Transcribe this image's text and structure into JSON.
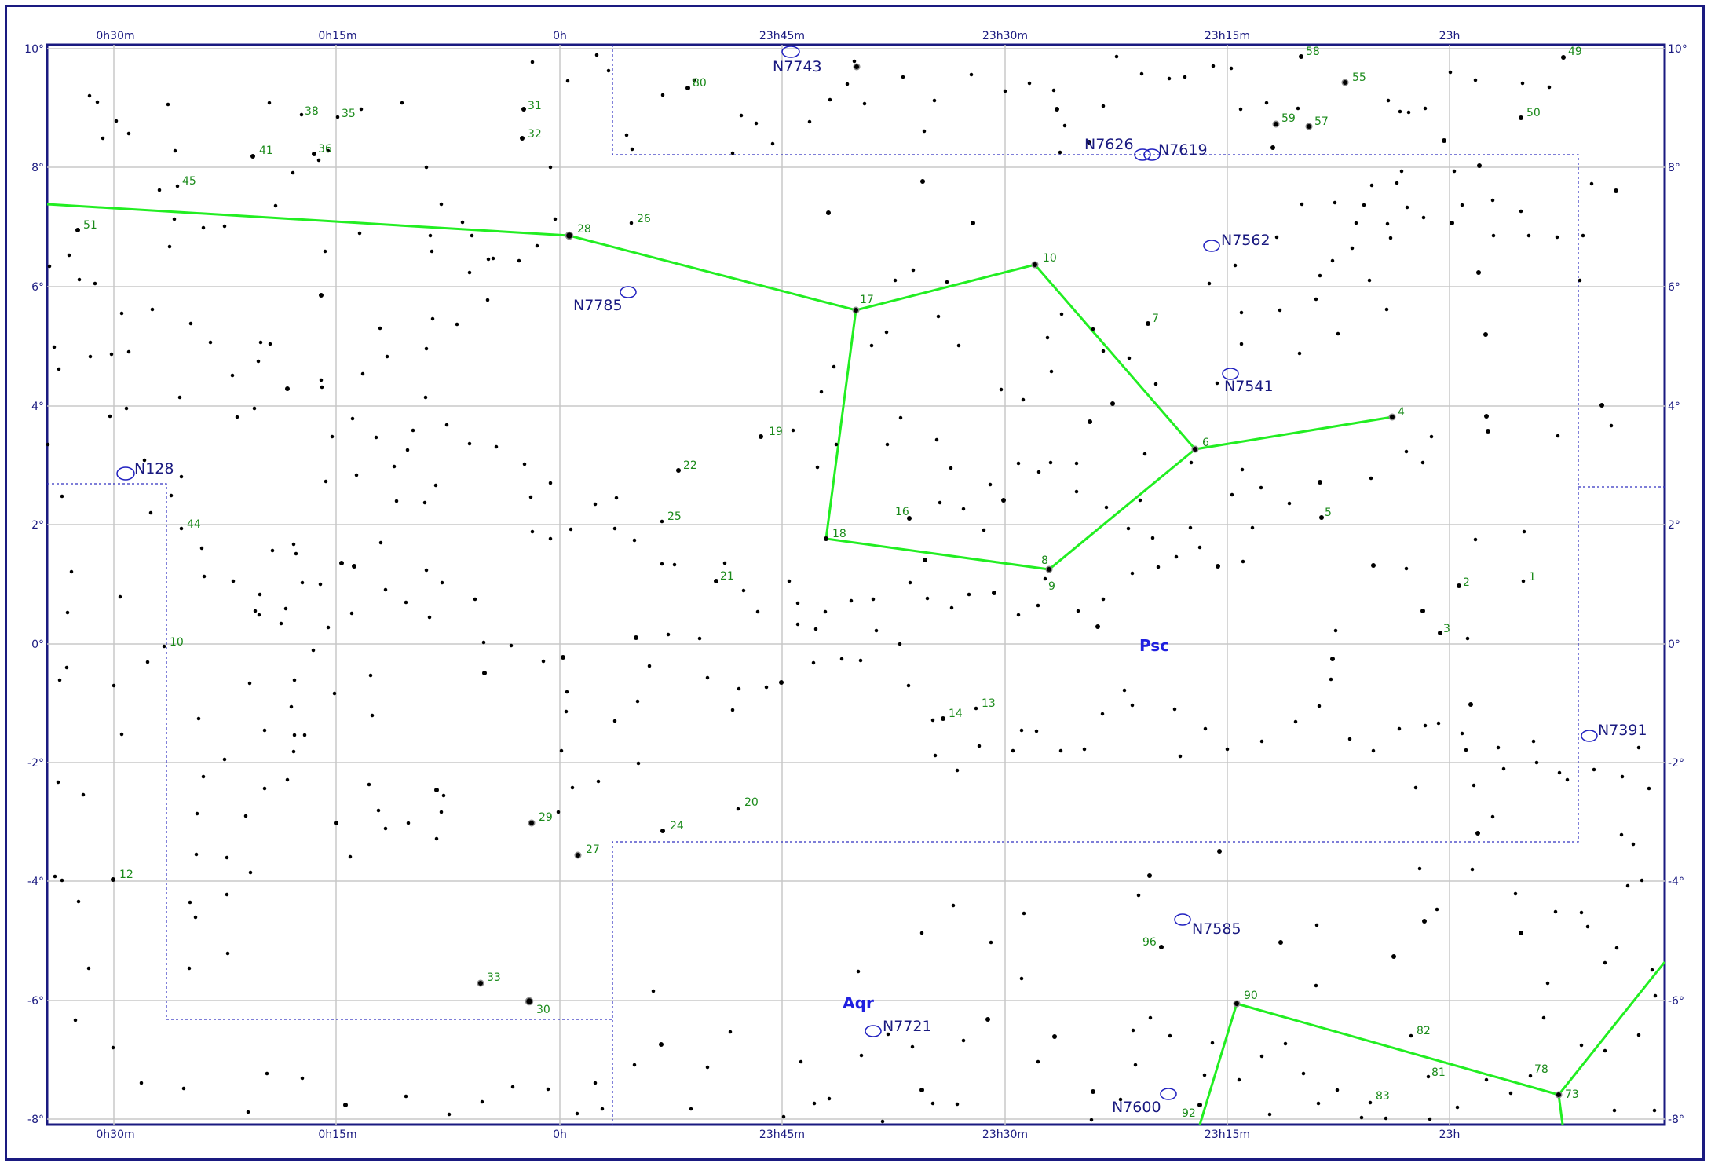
{
  "ra_labels": [
    "0h30m",
    "0h15m",
    "0h",
    "23h45m",
    "23h30m",
    "23h15m",
    "23h"
  ],
  "dec_labels": [
    "10°",
    "8°",
    "6°",
    "4°",
    "2°",
    "0°",
    "-2°",
    "-4°",
    "-6°",
    "-8°"
  ],
  "constellations": [
    "Psc",
    "Aqr"
  ],
  "deep_sky": [
    "N7743",
    "N7626",
    "N7619",
    "N7562",
    "N7785",
    "N7541",
    "N128",
    "N7391",
    "N7585",
    "N7721",
    "N7600"
  ],
  "star_numbers": [
    "58",
    "55",
    "49",
    "80",
    "59",
    "57",
    "50",
    "31",
    "32",
    "38",
    "35",
    "41",
    "36",
    "45",
    "51",
    "28",
    "26",
    "10",
    "17",
    "7",
    "4",
    "6",
    "19",
    "22",
    "25",
    "16",
    "18",
    "8",
    "9",
    "5",
    "2",
    "1",
    "3",
    "44",
    "10",
    "21",
    "14",
    "13",
    "20",
    "24",
    "29",
    "27",
    "12",
    "33",
    "30",
    "96",
    "90",
    "82",
    "81",
    "78",
    "73",
    "83",
    "92"
  ],
  "colors": {
    "grid": "#c8c8c8",
    "frame": "#1a1a80",
    "lines": "#22ee22",
    "boundary": "#3030c0",
    "star": "#000000",
    "dso": "#2020c0"
  }
}
